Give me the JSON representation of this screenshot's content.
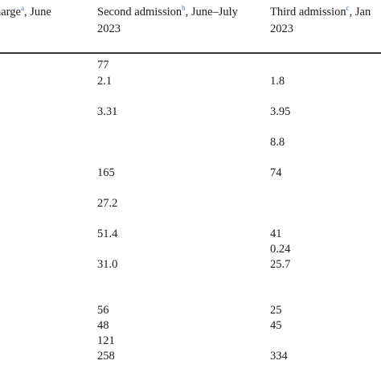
{
  "columns": [
    {
      "line1_pre": "harge",
      "line1_sup": "a",
      "line1_post": ", June",
      "line2": ""
    },
    {
      "line1_pre": "Second admission",
      "line1_sup": "b",
      "line1_post": ", June–July",
      "line2": "2023"
    },
    {
      "line1_pre": "Third admission",
      "line1_sup": "c",
      "line1_post": ", Jan",
      "line2": "2023"
    }
  ],
  "second_admission_values": [
    "77",
    "2.1",
    "3.31",
    "165",
    "27.2",
    "51.4",
    "31.0",
    "56",
    "48",
    "121",
    "258"
  ],
  "third_admission_values": [
    "1.8",
    "3.95",
    "8.8",
    "74",
    "41",
    "0.24",
    "25.7",
    "25",
    "45",
    "334"
  ]
}
